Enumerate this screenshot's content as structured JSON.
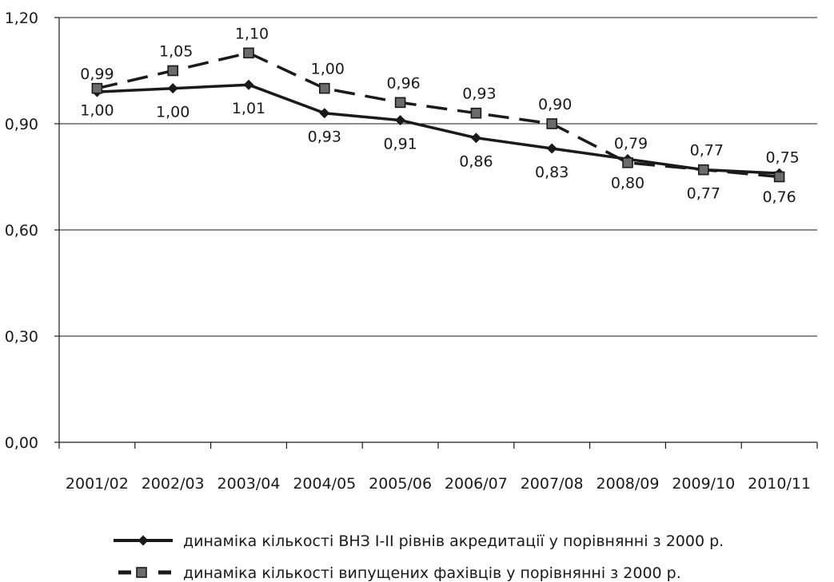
{
  "chart_data": {
    "type": "line",
    "categories": [
      "2001/02",
      "2002/03",
      "2003/04",
      "2004/05",
      "2005/06",
      "2006/07",
      "2007/08",
      "2008/09",
      "2009/10",
      "2010/11"
    ],
    "y_ticks": [
      "0,00",
      "0,30",
      "0,60",
      "0,90",
      "1,20"
    ],
    "ylim": [
      0,
      1.2
    ],
    "grid": true,
    "legend_position": "bottom",
    "series": [
      {
        "name": "динаміка кількості ВНЗ І-ІІ рівнів акредитації у порівнянні з 2000 р.",
        "style": "solid",
        "marker": "diamond",
        "color": "#1a1a1a",
        "values": [
          0.99,
          1.0,
          1.01,
          0.93,
          0.91,
          0.86,
          0.83,
          0.8,
          0.77,
          0.76
        ],
        "labels": [
          "0,99",
          "1,00",
          "1,01",
          "0,93",
          "0,91",
          "0,86",
          "0,83",
          "0,80",
          "0,77",
          "0,76"
        ]
      },
      {
        "name": "динаміка кількості випущених фахівців у порівнянні з 2000 р.",
        "style": "dashed",
        "marker": "square",
        "color": "#1a1a1a",
        "marker_fill": "#6b6b6b",
        "values": [
          1.0,
          1.05,
          1.1,
          1.0,
          0.96,
          0.93,
          0.9,
          0.79,
          0.77,
          0.75
        ],
        "labels": [
          "1,00",
          "1,05",
          "1,10",
          "1,00",
          "0,96",
          "0,93",
          "0,90",
          "0,79",
          "0,77",
          "0,75"
        ]
      }
    ]
  }
}
